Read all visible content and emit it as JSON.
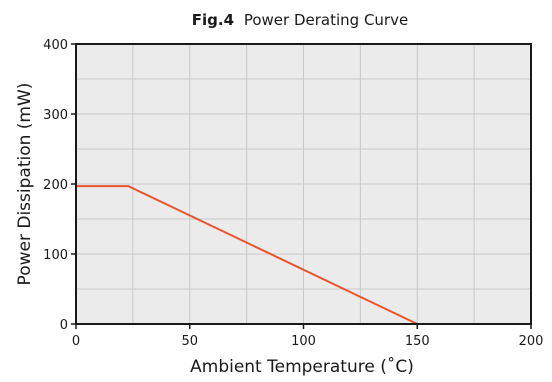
{
  "chart_data": {
    "type": "line",
    "title_prefix": "Fig.4",
    "title": "Power Derating Curve",
    "xlabel": "Ambient Temperature (˚C)",
    "ylabel": "Power Dissipation (mW)",
    "xlim": [
      0,
      200
    ],
    "ylim": [
      0,
      400
    ],
    "x_ticks": [
      0,
      50,
      100,
      150,
      200
    ],
    "y_ticks": [
      0,
      100,
      200,
      300,
      400
    ],
    "x_grid_step": 25,
    "y_grid_step": 50,
    "grid": true,
    "series": [
      {
        "color": "#e8542a",
        "x": [
          0,
          23,
          150
        ],
        "y": [
          197,
          197,
          0
        ]
      }
    ],
    "colors": {
      "plot_background": "#ebebeb",
      "grid_line": "#c8c8c8",
      "frame": "#1a1a1a"
    }
  }
}
